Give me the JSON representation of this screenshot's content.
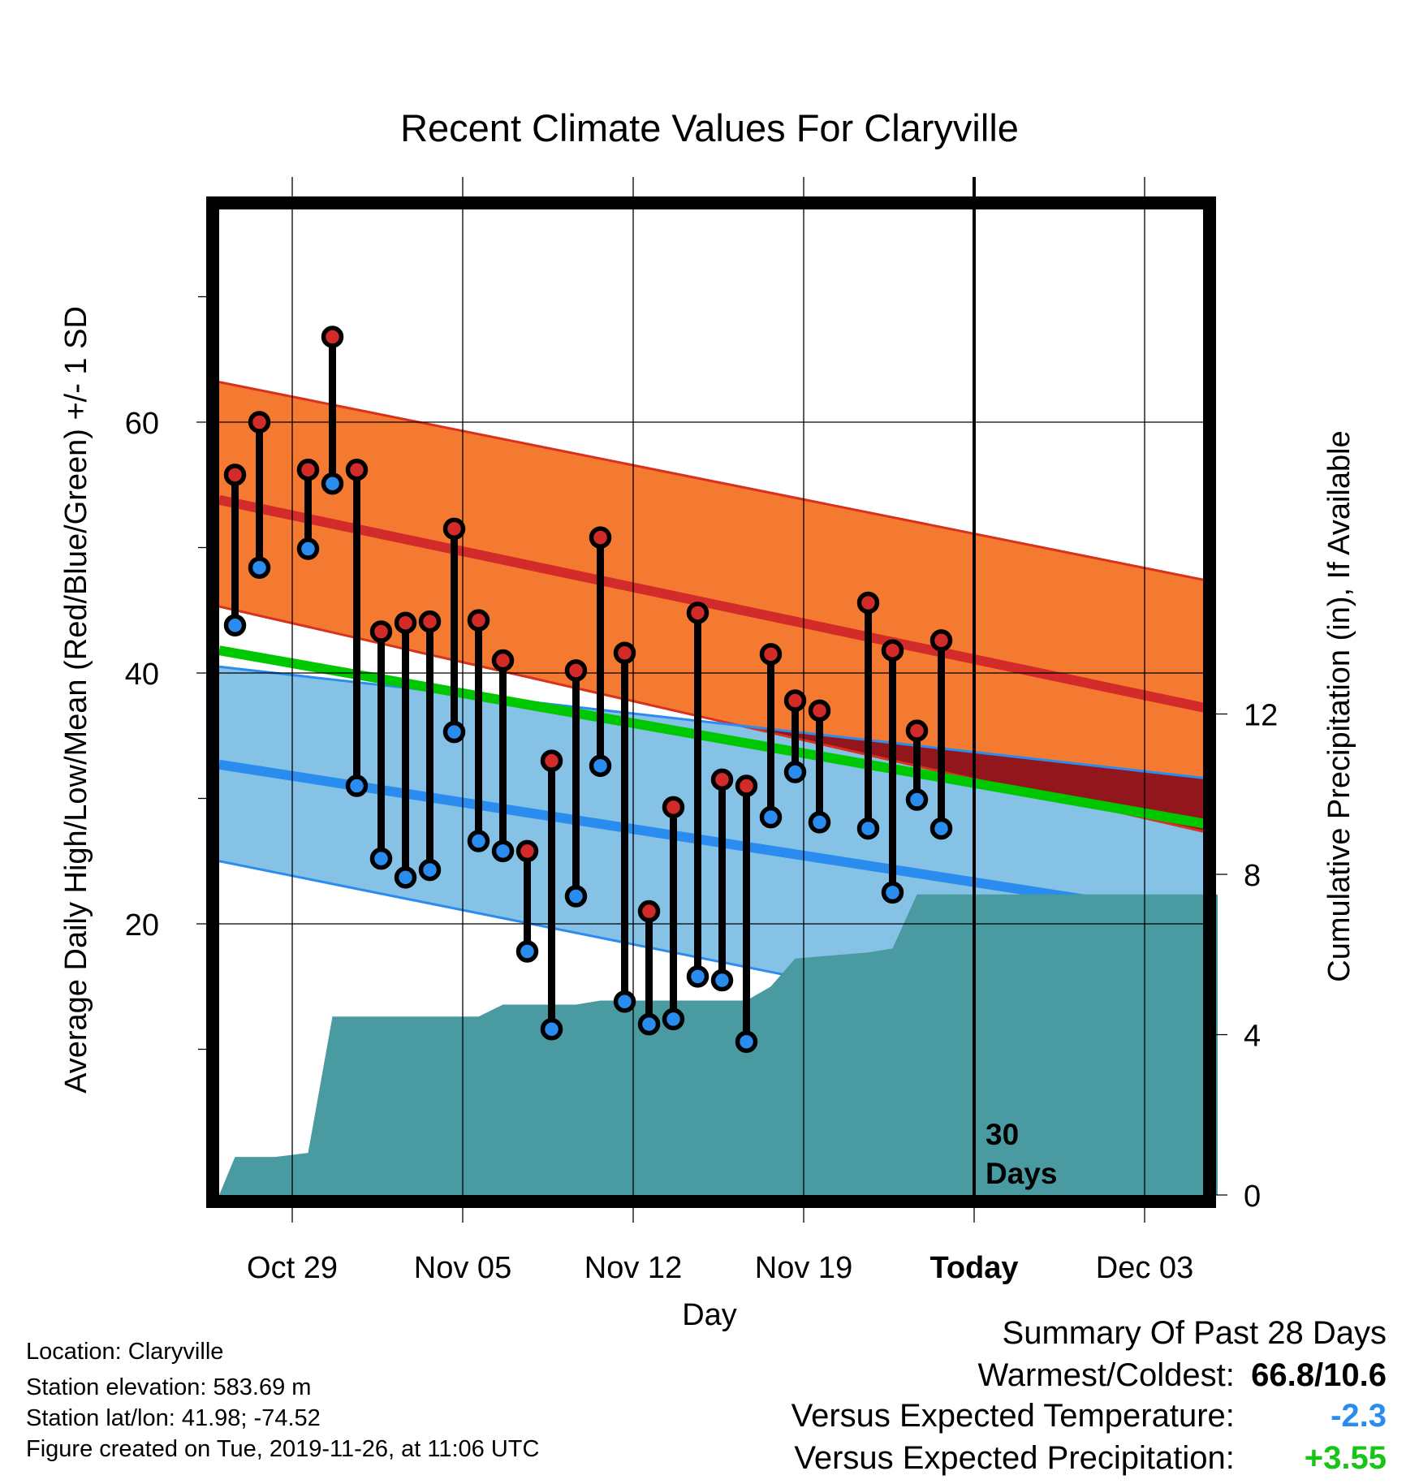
{
  "chart_data": {
    "type": "line",
    "title": "Recent Climate Values For Claryville",
    "xlabel": "Day",
    "ylabel": "Average Daily High/Low/Mean (Red/Blue/Green) +/- 1 SD",
    "ylabel_right": "Cumulative Precipitation (in), If Available",
    "x_range_days": [
      0,
      41
    ],
    "x_ticks": [
      {
        "day": 3,
        "label": "Oct 29"
      },
      {
        "day": 10,
        "label": "Nov 05"
      },
      {
        "day": 17,
        "label": "Nov 12"
      },
      {
        "day": 24,
        "label": "Nov 19"
      },
      {
        "day": 31,
        "label": "Today"
      },
      {
        "day": 38,
        "label": "Dec 03"
      }
    ],
    "ylim": [
      1,
      75
    ],
    "y_ticks_labeled": [
      20,
      40,
      60
    ],
    "y_ticks_minor": [
      10,
      30,
      50,
      70
    ],
    "y2lim": [
      0,
      24.4
    ],
    "y2_ticks": [
      0,
      4,
      8,
      12
    ],
    "today_day": 31,
    "today_label": "30\nDays",
    "normals": {
      "high_mean": {
        "start": 53.8,
        "end": 37.0
      },
      "high_band": {
        "start_upper": 63.2,
        "end_upper": 47.2,
        "start_lower": 45.3,
        "end_lower": 27.1
      },
      "low_mean": {
        "start": 32.7,
        "end": 20.3
      },
      "low_band": {
        "start_upper": 40.5,
        "end_upper": 31.5,
        "start_lower": 25.0,
        "end_lower": 9.0
      },
      "mean_line": {
        "start": 41.8,
        "end": 27.8
      },
      "colors": {
        "high_band": "#f47a32",
        "high_band_edge": "#d8311e",
        "high_mean": "#d32a2a",
        "low_band": "#86c2e6",
        "low_band_edge": "#2b8cf0",
        "low_mean": "#2b8cf0",
        "mean": "#00c800",
        "overlap": "#93161c",
        "precip": "#4a9aa2"
      }
    },
    "daily": [
      {
        "day": 0.65,
        "high": 55.8,
        "low": 43.8
      },
      {
        "day": 1.65,
        "high": 60.0,
        "low": 48.4
      },
      {
        "day": 3.65,
        "high": 56.2,
        "low": 49.9
      },
      {
        "day": 4.65,
        "high": 66.8,
        "low": 55.1
      },
      {
        "day": 5.65,
        "high": 56.2,
        "low": 31.0
      },
      {
        "day": 6.65,
        "high": 43.3,
        "low": 25.2
      },
      {
        "day": 7.65,
        "high": 44.0,
        "low": 23.7
      },
      {
        "day": 8.65,
        "high": 44.1,
        "low": 24.3
      },
      {
        "day": 9.65,
        "high": 51.5,
        "low": 35.3
      },
      {
        "day": 10.65,
        "high": 44.2,
        "low": 26.6
      },
      {
        "day": 11.65,
        "high": 41.0,
        "low": 25.8
      },
      {
        "day": 12.65,
        "high": 25.8,
        "low": 17.8
      },
      {
        "day": 13.65,
        "high": 33.0,
        "low": 11.6
      },
      {
        "day": 14.65,
        "high": 40.2,
        "low": 22.2
      },
      {
        "day": 15.65,
        "high": 50.8,
        "low": 32.6
      },
      {
        "day": 16.65,
        "high": 41.6,
        "low": 13.8
      },
      {
        "day": 17.65,
        "high": 21.0,
        "low": 12.0
      },
      {
        "day": 18.65,
        "high": 29.3,
        "low": 12.4
      },
      {
        "day": 19.65,
        "high": 44.8,
        "low": 15.8
      },
      {
        "day": 20.65,
        "high": 31.5,
        "low": 15.5
      },
      {
        "day": 21.65,
        "high": 31.0,
        "low": 10.6
      },
      {
        "day": 22.65,
        "high": 41.5,
        "low": 28.5
      },
      {
        "day": 23.65,
        "high": 37.8,
        "low": 32.1
      },
      {
        "day": 24.65,
        "high": 37.0,
        "low": 28.1
      },
      {
        "day": 26.65,
        "high": 45.6,
        "low": 27.6
      },
      {
        "day": 27.65,
        "high": 41.8,
        "low": 22.5
      },
      {
        "day": 28.65,
        "high": 35.4,
        "low": 29.9
      },
      {
        "day": 29.65,
        "high": 42.6,
        "low": 27.6
      }
    ],
    "precip_cumulative": [
      {
        "day": 0,
        "in": 0.0
      },
      {
        "day": 0.65,
        "in": 0.95
      },
      {
        "day": 2.3,
        "in": 0.95
      },
      {
        "day": 3.65,
        "in": 1.05
      },
      {
        "day": 4.65,
        "in": 4.45
      },
      {
        "day": 10.65,
        "in": 4.45
      },
      {
        "day": 11.65,
        "in": 4.75
      },
      {
        "day": 14.65,
        "in": 4.75
      },
      {
        "day": 15.65,
        "in": 4.85
      },
      {
        "day": 21.65,
        "in": 4.85
      },
      {
        "day": 22.65,
        "in": 5.2
      },
      {
        "day": 23.65,
        "in": 5.9
      },
      {
        "day": 26.65,
        "in": 6.05
      },
      {
        "day": 27.65,
        "in": 6.15
      },
      {
        "day": 28.65,
        "in": 7.5
      },
      {
        "day": 41,
        "in": 7.5
      }
    ]
  },
  "info": {
    "location": "Location: Claryville",
    "elevation": "Station elevation: 583.69 m",
    "latlon": "Station lat/lon: 41.98; -74.52",
    "created": "Figure created on Tue, 2019-11-26, at 11:06 UTC"
  },
  "summary": {
    "title": "Summary Of Past 28 Days",
    "warm_cold_label": "Warmest/Coldest:",
    "warm_cold_value": "66.8/10.6",
    "temp_label": "Versus Expected Temperature:",
    "temp_value": "-2.3",
    "temp_color": "#2b8cf0",
    "precip_label": "Versus Expected Precipitation:",
    "precip_value": "+3.55",
    "precip_color": "#19c419"
  }
}
